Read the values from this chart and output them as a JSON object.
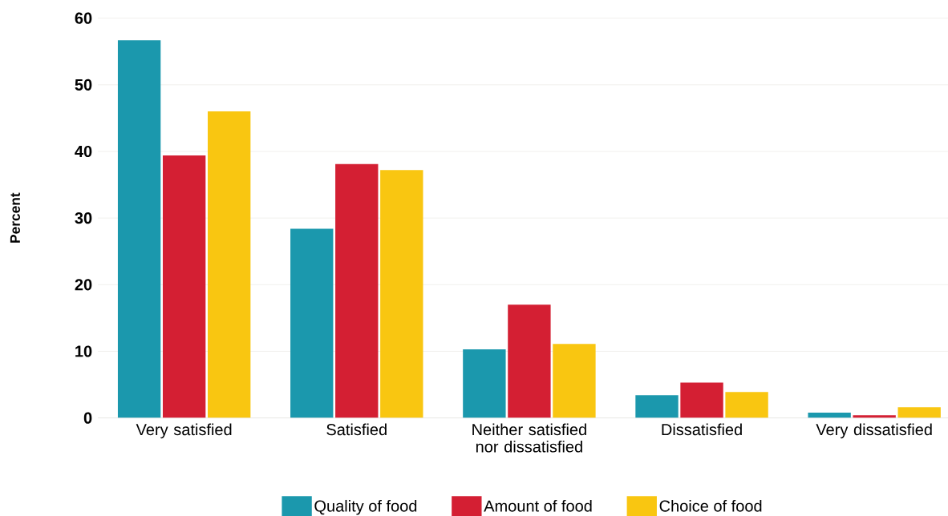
{
  "chart_data": {
    "type": "bar",
    "ylabel": "Percent",
    "categories": [
      "Very satisfied",
      "Satisfied",
      "Neither satisfied nor dissatisfied",
      "Dissatisfied",
      "Very dissatisfied"
    ],
    "series": [
      {
        "name": "Quality of food",
        "color": "#1b98ad",
        "values": [
          56.7,
          28.4,
          10.3,
          3.4,
          0.8
        ]
      },
      {
        "name": "Amount of food",
        "color": "#d41f33",
        "values": [
          39.4,
          38.1,
          17.0,
          5.3,
          0.4
        ]
      },
      {
        "name": "Choice of food",
        "color": "#f9c611",
        "values": [
          46.0,
          37.2,
          11.1,
          3.9,
          1.6
        ]
      }
    ],
    "ylim": [
      0,
      60
    ],
    "yticks": [
      0,
      10,
      20,
      30,
      40,
      50,
      60
    ],
    "grid": "y",
    "legend": "bottom"
  }
}
